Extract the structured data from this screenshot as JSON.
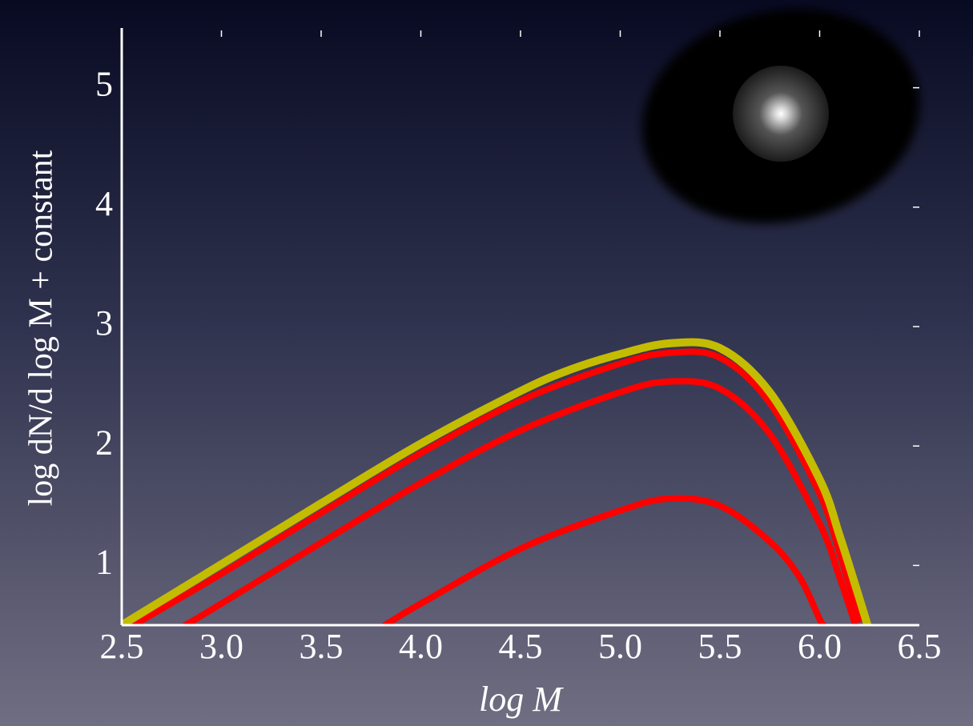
{
  "chart_data": {
    "type": "line",
    "xlabel": "log M",
    "ylabel": "log dN/d log M + constant",
    "xlim": [
      2.5,
      6.5
    ],
    "ylim": [
      0.5,
      5.5
    ],
    "xticks": [
      2.5,
      {
        "value": 3,
        "label": "3.0"
      },
      3.5,
      {
        "value": 4,
        "label": "4.0"
      },
      4.5,
      {
        "value": 5,
        "label": "5.0"
      },
      5.5,
      {
        "value": 6,
        "label": "6.0"
      },
      6.5
    ],
    "yticks": [
      1,
      2,
      3,
      4,
      5
    ],
    "series": [
      {
        "color": "#c4bc00",
        "width": 10,
        "x": [
          2.5,
          3.0,
          3.5,
          4.0,
          4.5,
          4.75,
          5.0,
          5.25,
          5.5,
          5.75,
          6.0,
          6.1,
          6.2,
          6.24
        ],
        "values": [
          0.5,
          1.01,
          1.52,
          2.02,
          2.46,
          2.64,
          2.77,
          2.86,
          2.82,
          2.45,
          1.72,
          1.25,
          0.72,
          0.5
        ]
      },
      {
        "color": "#ff0000",
        "width": 8,
        "x": [
          2.56,
          3.0,
          3.5,
          4.0,
          4.5,
          5.0,
          5.25,
          5.5,
          5.75,
          6.0,
          6.1,
          6.2
        ],
        "values": [
          0.5,
          0.93,
          1.44,
          1.94,
          2.38,
          2.69,
          2.78,
          2.74,
          2.36,
          1.6,
          1.1,
          0.55
        ]
      },
      {
        "color": "#ff0000",
        "width": 8,
        "x": [
          2.82,
          3.0,
          3.5,
          4.0,
          4.5,
          5.0,
          5.25,
          5.5,
          5.75,
          6.0,
          6.1,
          6.18
        ],
        "values": [
          0.5,
          0.68,
          1.19,
          1.69,
          2.13,
          2.45,
          2.54,
          2.48,
          2.1,
          1.35,
          0.9,
          0.5
        ]
      },
      {
        "color": "#ff0000",
        "width": 8,
        "x": [
          3.82,
          4.0,
          4.5,
          5.0,
          5.25,
          5.5,
          5.75,
          5.9,
          6.0,
          6.02
        ],
        "values": [
          0.5,
          0.68,
          1.14,
          1.46,
          1.56,
          1.5,
          1.2,
          0.9,
          0.55,
          0.5
        ]
      }
    ]
  }
}
